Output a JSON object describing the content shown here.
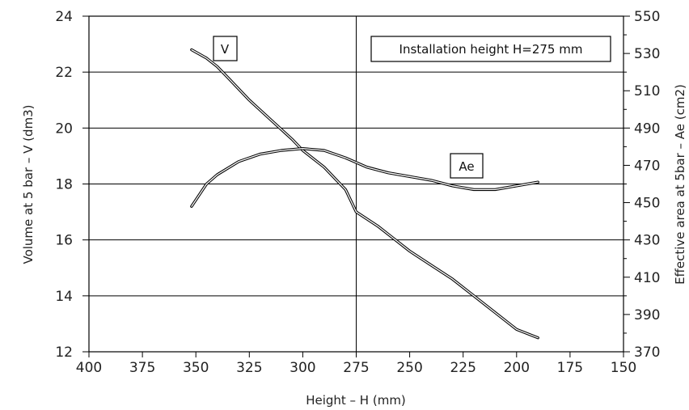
{
  "chart_data": {
    "type": "line",
    "xlabel": "Height  –  H (mm)",
    "ylabel_left": "Volume at 5 bar  –  V (dm3)",
    "ylabel_right": "Effective area at 5bar  –  Ae (cm2)",
    "xlim": [
      400,
      150
    ],
    "ylim_left": [
      12,
      24
    ],
    "ylim_right": [
      370,
      550
    ],
    "x_ticks": [
      400,
      375,
      350,
      325,
      300,
      275,
      250,
      225,
      200,
      175,
      150
    ],
    "y_left_ticks": [
      12,
      14,
      16,
      18,
      20,
      22,
      24
    ],
    "y_right_ticks": [
      370,
      390,
      410,
      430,
      450,
      470,
      490,
      510,
      530,
      550
    ],
    "grid": true,
    "reference_line": {
      "x": 275
    },
    "annotation": "Installation height H=275 mm",
    "series": [
      {
        "name": "V",
        "axis": "left",
        "x": [
          352,
          345,
          340,
          335,
          325,
          315,
          305,
          300,
          290,
          280,
          275,
          265,
          260,
          250,
          240,
          230,
          220,
          210,
          200,
          190
        ],
        "y": [
          22.8,
          22.5,
          22.2,
          21.8,
          21.0,
          20.3,
          19.6,
          19.2,
          18.6,
          17.8,
          17.0,
          16.5,
          16.2,
          15.6,
          15.1,
          14.6,
          14.0,
          13.4,
          12.8,
          12.5
        ]
      },
      {
        "name": "Ae",
        "axis": "right",
        "x": [
          352,
          345,
          340,
          330,
          320,
          310,
          300,
          290,
          280,
          270,
          260,
          250,
          240,
          230,
          220,
          210,
          200,
          190
        ],
        "y": [
          448,
          460,
          465,
          472,
          476,
          478,
          479,
          478,
          474,
          469,
          466,
          464,
          462,
          459,
          457,
          457,
          459,
          461
        ]
      }
    ]
  }
}
